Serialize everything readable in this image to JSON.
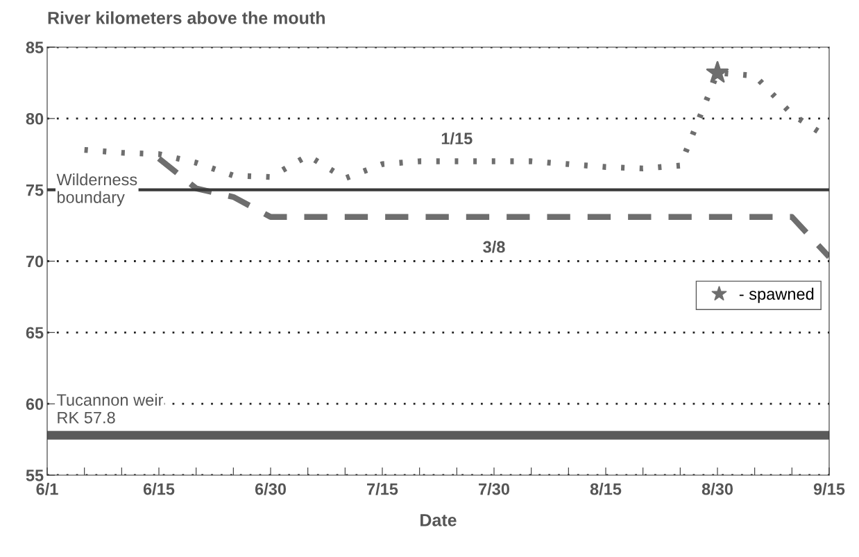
{
  "chart_data": {
    "type": "line",
    "title": "River kilometers above the mouth",
    "xlabel": "Date",
    "categories": [
      "6/1",
      null,
      null,
      "6/15",
      null,
      null,
      "6/30",
      null,
      null,
      "7/15",
      null,
      null,
      "7/30",
      null,
      null,
      "8/15",
      null,
      null,
      "8/30",
      null,
      null,
      "9/15"
    ],
    "ylim": [
      55,
      85
    ],
    "yticks": [
      55,
      60,
      65,
      70,
      75,
      80,
      85
    ],
    "grid": "y",
    "series": [
      {
        "name": "1/15",
        "color": "#6e6e6e",
        "line_style": "dotted",
        "values": [
          null,
          77.8,
          77.6,
          77.5,
          76.9,
          76.0,
          75.9,
          77.4,
          75.8,
          76.8,
          77.0,
          77.0,
          77.0,
          77.0,
          76.8,
          76.6,
          76.5,
          76.7,
          83.2,
          83.0,
          80.3,
          78.6
        ]
      },
      {
        "name": "3/8",
        "color": "#6e6e6e",
        "line_style": "dashed",
        "values": [
          null,
          null,
          null,
          77.2,
          75.1,
          74.5,
          73.1,
          73.1,
          73.1,
          73.1,
          73.1,
          73.1,
          73.1,
          73.1,
          73.1,
          73.1,
          73.1,
          73.1,
          73.1,
          73.1,
          73.1,
          70.3
        ]
      },
      {
        "name": "- spawned",
        "type": "scatter",
        "marker": "star",
        "color": "#6e6e6e",
        "values": [
          null,
          null,
          null,
          null,
          null,
          null,
          null,
          null,
          null,
          null,
          null,
          null,
          null,
          null,
          null,
          null,
          null,
          null,
          83.2,
          null,
          null,
          null
        ]
      }
    ],
    "ref_lines": [
      {
        "axis": "y",
        "value": 75,
        "label": "Wilderness\nboundary",
        "color": "#3a3a3a",
        "line_style": "solid"
      },
      {
        "axis": "y",
        "value": 57.8,
        "label": "Tucannon weir\nRK 57.8",
        "color": "#5a5a5a",
        "line_style": "solid"
      }
    ],
    "legend": "right"
  }
}
